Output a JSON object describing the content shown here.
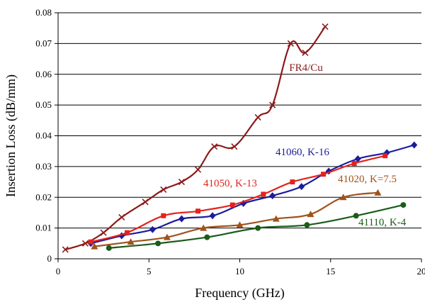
{
  "chart_data": {
    "type": "line",
    "title": "",
    "xlabel": "Frequency (GHz)",
    "ylabel": "Insertion Loss (dB/mm)",
    "xlim": [
      0,
      20
    ],
    "ylim": [
      0,
      0.08
    ],
    "x_ticks": [
      "0",
      "5",
      "10",
      "15",
      "20"
    ],
    "y_ticks": [
      "0",
      "0.01",
      "0.02",
      "0.03",
      "0.04",
      "0.05",
      "0.06",
      "0.07",
      "0.08"
    ],
    "grid": "horizontal",
    "legend": "inline labels",
    "series": [
      {
        "name": "FR4/Cu",
        "color": "#8b1a1a",
        "marker": "x",
        "x": [
          0.4,
          1.5,
          2.5,
          3.5,
          4.8,
          5.8,
          6.8,
          7.7,
          8.6,
          9.7,
          11.0,
          11.8,
          12.8,
          13.6,
          14.7
        ],
        "y": [
          0.003,
          0.005,
          0.0085,
          0.0135,
          0.0185,
          0.0225,
          0.025,
          0.029,
          0.0365,
          0.0365,
          0.046,
          0.05,
          0.07,
          0.067,
          0.0755
        ]
      },
      {
        "name": "41060, K-16",
        "color": "#1c1c9c",
        "marker": "diamond",
        "x": [
          1.8,
          3.5,
          5.2,
          6.8,
          8.5,
          10.2,
          11.8,
          13.4,
          14.9,
          16.5,
          18.1,
          19.6
        ],
        "y": [
          0.005,
          0.0075,
          0.0095,
          0.013,
          0.014,
          0.018,
          0.0205,
          0.0235,
          0.0285,
          0.0325,
          0.0345,
          0.037
        ]
      },
      {
        "name": "41050, K-13",
        "color": "#e3231c",
        "marker": "square",
        "x": [
          1.8,
          3.8,
          5.8,
          7.7,
          9.6,
          11.3,
          12.9,
          14.6,
          16.3,
          18.0
        ],
        "y": [
          0.0055,
          0.0085,
          0.014,
          0.0155,
          0.0175,
          0.021,
          0.025,
          0.0275,
          0.031,
          0.0335
        ]
      },
      {
        "name": "41020, K=7.5",
        "color": "#a0521c",
        "marker": "triangle",
        "x": [
          2.0,
          4.0,
          6.0,
          8.0,
          10.0,
          12.0,
          13.9,
          15.7,
          17.6
        ],
        "y": [
          0.004,
          0.0055,
          0.007,
          0.01,
          0.011,
          0.013,
          0.0145,
          0.02,
          0.0215
        ]
      },
      {
        "name": "41110, K-4",
        "color": "#1a5c1a",
        "marker": "circle",
        "x": [
          2.8,
          5.5,
          8.2,
          11.0,
          13.7,
          16.4,
          19.0
        ],
        "y": [
          0.0035,
          0.005,
          0.007,
          0.01,
          0.011,
          0.014,
          0.0175
        ]
      }
    ]
  }
}
